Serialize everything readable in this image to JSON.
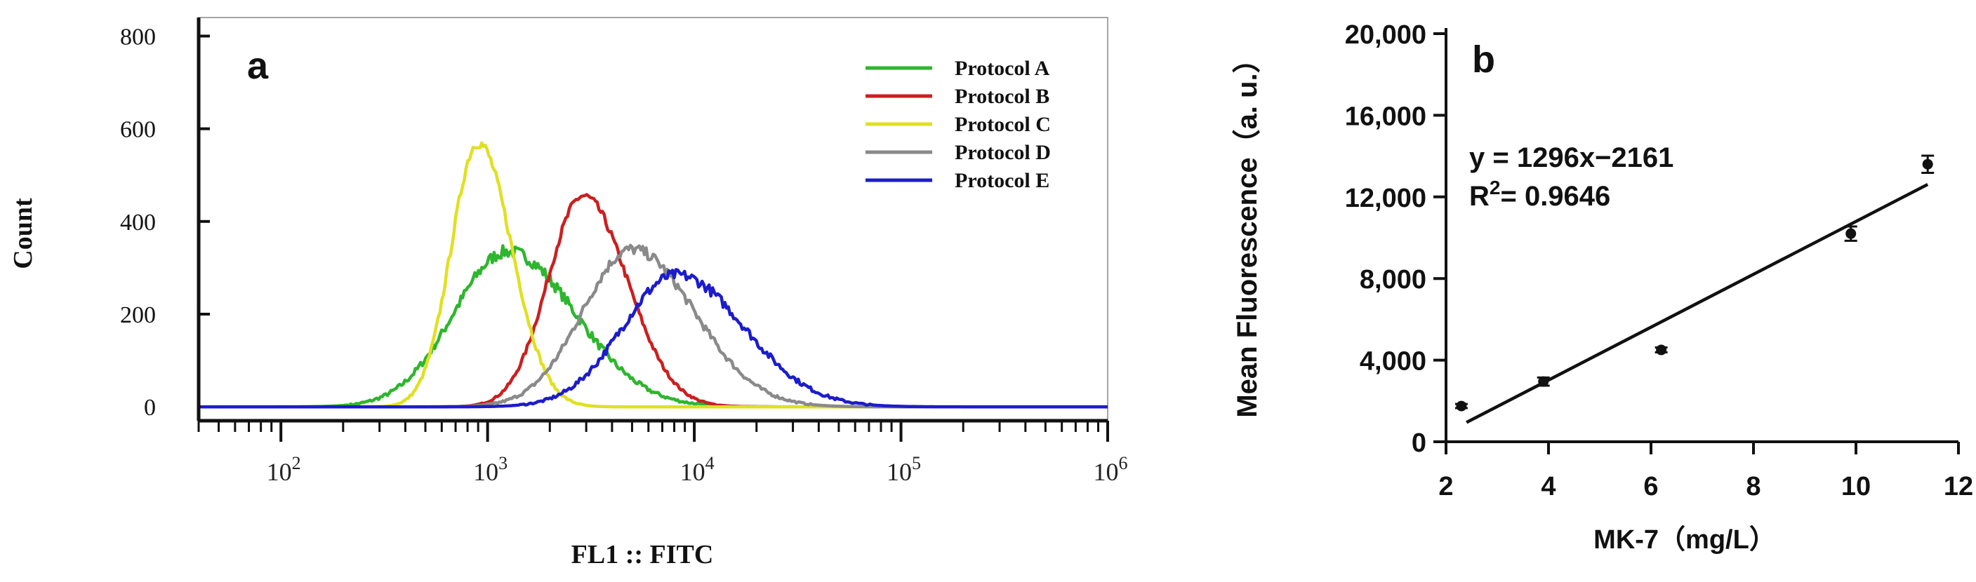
{
  "chart_data": [
    {
      "type": "line",
      "panel_label": "a",
      "title": "",
      "xlabel": "FL1 :: FITC",
      "ylabel": "Count",
      "xscale": "log",
      "xlim": [
        40,
        1000000
      ],
      "ylim": [
        -30,
        840
      ],
      "x_ticks": [
        {
          "base": "10",
          "exp": "2"
        },
        {
          "base": "10",
          "exp": "3"
        },
        {
          "base": "10",
          "exp": "4"
        },
        {
          "base": "10",
          "exp": "5"
        },
        {
          "base": "10",
          "exp": "6"
        }
      ],
      "y_ticks": [
        "0",
        "200",
        "400",
        "600",
        "800"
      ],
      "y_tick_values": [
        0,
        200,
        400,
        600,
        800
      ],
      "legend_position": "top-right",
      "series": [
        {
          "name": "Protocol A",
          "color": "#2eb62e",
          "peak_x": 1250,
          "peak_y": 335,
          "spread": 0.26,
          "noise": 14
        },
        {
          "name": "Protocol B",
          "color": "#cc1f1f",
          "peak_x": 2900,
          "peak_y": 455,
          "spread": 0.17,
          "noise": 10
        },
        {
          "name": "Protocol C",
          "color": "#e0e022",
          "peak_x": 900,
          "peak_y": 570,
          "spread": 0.13,
          "noise": 12
        },
        {
          "name": "Protocol D",
          "color": "#8a8a8a",
          "peak_x": 5000,
          "peak_y": 340,
          "spread": 0.24,
          "noise": 12
        },
        {
          "name": "Protocol E",
          "color": "#1c1ccc",
          "peak_x": 8200,
          "peak_y": 285,
          "spread": 0.26,
          "noise": 12
        }
      ]
    },
    {
      "type": "scatter",
      "panel_label": "b",
      "title": "",
      "xlabel": "MK-7（mg/L）",
      "ylabel": "Mean Fluorescence（a. u.）",
      "xlim": [
        2,
        12
      ],
      "ylim": [
        0,
        20000
      ],
      "x_ticks": [
        "2",
        "4",
        "6",
        "8",
        "10",
        "12"
      ],
      "x_tick_values": [
        2,
        4,
        6,
        8,
        10,
        12
      ],
      "y_ticks": [
        "0",
        "4,000",
        "8,000",
        "12,000",
        "16,000",
        "20,000"
      ],
      "y_tick_values": [
        0,
        4000,
        8000,
        12000,
        16000,
        20000
      ],
      "points": [
        {
          "x": 2.3,
          "y": 1750,
          "err": 100
        },
        {
          "x": 3.9,
          "y": 2950,
          "err": 200
        },
        {
          "x": 6.2,
          "y": 4500,
          "err": 120
        },
        {
          "x": 9.9,
          "y": 10200,
          "err": 350
        },
        {
          "x": 11.4,
          "y": 13600,
          "err": 420
        }
      ],
      "fit": {
        "slope": 1296,
        "intercept": -2161,
        "x_range": [
          2.4,
          11.4
        ]
      },
      "equation": "y = 1296x−2161",
      "r2_label": "R",
      "r2_sup": "2",
      "r2_value": "= 0.9646"
    }
  ]
}
